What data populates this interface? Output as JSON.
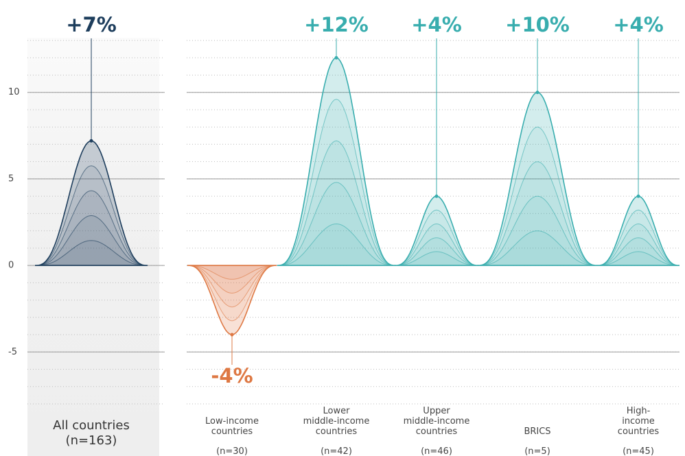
{
  "chart_data": {
    "type": "bell",
    "categories": [
      "All countries",
      "Low-income\ncountries",
      "Lower\nmiddle-income\ncountries",
      "Upper\nmiddle-income\ncountries",
      "BRICS",
      "High-income\ncountries"
    ],
    "sample_sizes": [
      "(n=163)",
      "(n=30)",
      "(n=42)",
      "(n=46)",
      "(n=5)",
      "(n=45)"
    ],
    "values": [
      7.2,
      -4,
      12,
      4,
      10,
      4
    ],
    "value_labels": [
      "+7%",
      "-4%",
      "+12%",
      "+4%",
      "+10%",
      "+4%"
    ],
    "colors": [
      "#1d3d5c",
      "#de7843",
      "#38adae",
      "#38adae",
      "#38adae",
      "#38adae"
    ],
    "ylim": [
      -8,
      13
    ],
    "yticks": [
      -5,
      0,
      5,
      10
    ],
    "minor_yticks": [
      -8,
      -7,
      -6,
      -5,
      -4,
      -3,
      -2,
      -1,
      0,
      1,
      2,
      3,
      4,
      5,
      6,
      7,
      8,
      9,
      10,
      11,
      12,
      13
    ],
    "grid": true
  }
}
